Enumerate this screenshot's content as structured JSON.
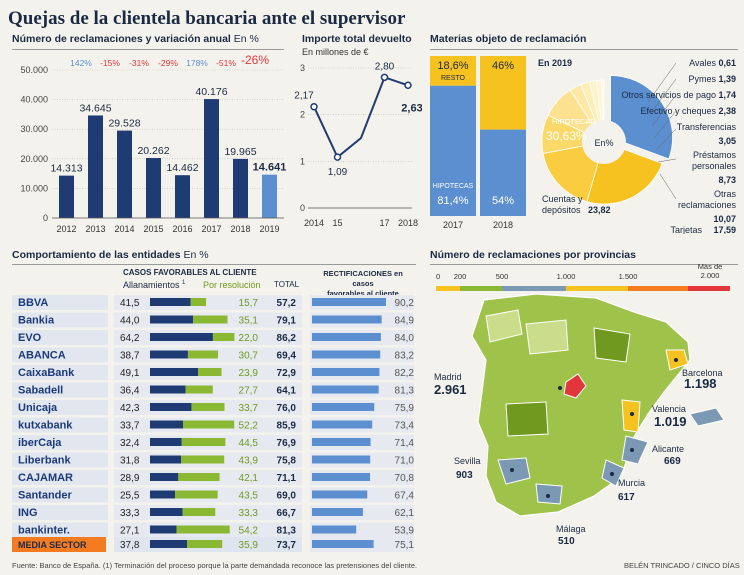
{
  "title": "Quejas de la clientela bancaria ante el supervisor",
  "panels": {
    "reclamaciones": {
      "heading": "Número de reclamaciones y variación anual",
      "unit": "En %"
    },
    "importe": {
      "heading": "Importe total devuelto",
      "unit": "En millones de €"
    },
    "materias": {
      "heading": "Materias objeto de reclamación",
      "year_label": "En 2019"
    },
    "comportamiento": {
      "heading": "Comportamiento de las entidades",
      "unit": "En %",
      "casos_header": "CASOS FAVORABLES AL CLIENTE",
      "allanamientos_header": "Allanamientos",
      "allanamientos_sup": "1",
      "resolucion_header": "Por resolución",
      "total_header": "TOTAL",
      "rect_header_line1": "RECTIFICACIONES en casos",
      "rect_header_line2": "favorables al cliente"
    },
    "provincias": {
      "heading": "Número de reclamaciones por provincias"
    }
  },
  "colors": {
    "navy": "#1f3b73",
    "blue": "#5b8fd0",
    "yellow": "#f6c21f",
    "green": "#8ab832",
    "red": "#e2363b",
    "orange": "#f47b20",
    "teal": "#7b98b5"
  },
  "chart_data": [
    {
      "type": "bar",
      "title": "Número de reclamaciones y variación anual",
      "categories": [
        "2012",
        "2013",
        "2014",
        "2015",
        "2016",
        "2017",
        "2018",
        "2019"
      ],
      "values": [
        14313,
        34645,
        29528,
        20262,
        14462,
        40176,
        19965,
        14641
      ],
      "value_labels": [
        "14.313",
        "34.645",
        "29.528",
        "20.262",
        "14.462",
        "40.176",
        "19.965",
        "14.641"
      ],
      "variation_labels": [
        "",
        "142%",
        "-15%",
        "-31%",
        "-29%",
        "178%",
        "-51%",
        "-26%"
      ],
      "ylim": [
        0,
        50000
      ],
      "y_ticks": [
        0,
        10000,
        20000,
        30000,
        40000,
        50000
      ],
      "y_tick_labels": [
        "0",
        "10.000",
        "20.000",
        "30.000",
        "40.000",
        "50.000"
      ]
    },
    {
      "type": "line",
      "title": "Importe total devuelto",
      "x": [
        2014,
        2015,
        2016,
        2017,
        2018
      ],
      "x_tick_labels": [
        "2014",
        "15",
        "",
        "17",
        "2018"
      ],
      "values": [
        2.17,
        1.09,
        1.5,
        2.8,
        2.63
      ],
      "value_labels": [
        "2,17",
        "1,09",
        "",
        "2,80",
        "2,63"
      ],
      "ylim": [
        0,
        3
      ],
      "y_ticks": [
        0,
        1,
        2,
        3
      ],
      "y_tick_labels": [
        "0",
        "1",
        "2",
        "3"
      ]
    },
    {
      "type": "bar",
      "subtype": "stacked-100",
      "title": "Materias objeto de reclamación",
      "categories": [
        "2017",
        "2018"
      ],
      "series": [
        {
          "name": "HIPOTECAS",
          "values": [
            81.4,
            54
          ],
          "labels": [
            "81,4%",
            "54%"
          ]
        },
        {
          "name": "RESTO",
          "values": [
            18.6,
            46
          ],
          "labels": [
            "18,6%",
            "46%"
          ]
        }
      ]
    },
    {
      "type": "pie",
      "title": "En 2019",
      "center_label": "En%",
      "slices": [
        {
          "name": "HIPOTECAS",
          "value": 30.63,
          "label": "30,63%"
        },
        {
          "name": "Cuentas y depósitos",
          "value": 23.82,
          "label": "23,82"
        },
        {
          "name": "Tarjetas",
          "value": 17.59,
          "label": "17,59"
        },
        {
          "name": "Otras reclamaciones",
          "value": 10.07,
          "label": "10,07"
        },
        {
          "name": "Préstamos personales",
          "value": 8.73,
          "label": "8,73"
        },
        {
          "name": "Transferencias",
          "value": 3.05,
          "label": "3,05"
        },
        {
          "name": "Efectivo y cheques",
          "value": 2.38,
          "label": "2,38"
        },
        {
          "name": "Otros servicios de pago",
          "value": 1.74,
          "label": "1,74"
        },
        {
          "name": "Pymes",
          "value": 1.39,
          "label": "1,39"
        },
        {
          "name": "Avales",
          "value": 0.61,
          "label": "0,61"
        }
      ]
    },
    {
      "type": "table",
      "title": "Comportamiento de las entidades",
      "rows": [
        {
          "bank": "BBVA",
          "allanamientos": 41.5,
          "resolucion": 15.7,
          "total": 57.2,
          "rectificaciones": 90.2,
          "a": "41,5",
          "r": "15,7",
          "t": "57,2",
          "rect": "90,2"
        },
        {
          "bank": "Bankia",
          "allanamientos": 44.0,
          "resolucion": 35.1,
          "total": 79.1,
          "rectificaciones": 84.9,
          "a": "44,0",
          "r": "35,1",
          "t": "79,1",
          "rect": "84,9"
        },
        {
          "bank": "EVO",
          "allanamientos": 64.2,
          "resolucion": 22.0,
          "total": 86.2,
          "rectificaciones": 84.0,
          "a": "64,2",
          "r": "22,0",
          "t": "86,2",
          "rect": "84,0"
        },
        {
          "bank": "ABANCA",
          "allanamientos": 38.7,
          "resolucion": 30.7,
          "total": 69.4,
          "rectificaciones": 83.2,
          "a": "38,7",
          "r": "30,7",
          "t": "69,4",
          "rect": "83,2"
        },
        {
          "bank": "CaixaBank",
          "allanamientos": 49.1,
          "resolucion": 23.9,
          "total": 72.9,
          "rectificaciones": 82.2,
          "a": "49,1",
          "r": "23,9",
          "t": "72,9",
          "rect": "82,2"
        },
        {
          "bank": "Sabadell",
          "allanamientos": 36.4,
          "resolucion": 27.7,
          "total": 64.1,
          "rectificaciones": 81.3,
          "a": "36,4",
          "r": "27,7",
          "t": "64,1",
          "rect": "81,3"
        },
        {
          "bank": "Unicaja",
          "allanamientos": 42.3,
          "resolucion": 33.7,
          "total": 76.0,
          "rectificaciones": 75.9,
          "a": "42,3",
          "r": "33,7",
          "t": "76,0",
          "rect": "75,9"
        },
        {
          "bank": "kutxabank",
          "allanamientos": 33.7,
          "resolucion": 52.2,
          "total": 85.9,
          "rectificaciones": 73.4,
          "a": "33,7",
          "r": "52,2",
          "t": "85,9",
          "rect": "73,4"
        },
        {
          "bank": "iberCaja",
          "allanamientos": 32.4,
          "resolucion": 44.5,
          "total": 76.9,
          "rectificaciones": 71.4,
          "a": "32,4",
          "r": "44,5",
          "t": "76,9",
          "rect": "71,4"
        },
        {
          "bank": "Liberbank",
          "allanamientos": 31.8,
          "resolucion": 43.9,
          "total": 75.8,
          "rectificaciones": 71.0,
          "a": "31,8",
          "r": "43,9",
          "t": "75,8",
          "rect": "71,0"
        },
        {
          "bank": "CAJAMAR",
          "allanamientos": 28.9,
          "resolucion": 42.1,
          "total": 71.1,
          "rectificaciones": 70.8,
          "a": "28,9",
          "r": "42,1",
          "t": "71,1",
          "rect": "70,8"
        },
        {
          "bank": "Santander",
          "allanamientos": 25.5,
          "resolucion": 43.5,
          "total": 69.0,
          "rectificaciones": 67.4,
          "a": "25,5",
          "r": "43,5",
          "t": "69,0",
          "rect": "67,4"
        },
        {
          "bank": "ING",
          "allanamientos": 33.3,
          "resolucion": 33.3,
          "total": 66.7,
          "rectificaciones": 62.1,
          "a": "33,3",
          "r": "33,3",
          "t": "66,7",
          "rect": "62,1"
        },
        {
          "bank": "bankinter.",
          "allanamientos": 27.1,
          "resolucion": 54.2,
          "total": 81.3,
          "rectificaciones": 53.9,
          "a": "27,1",
          "r": "54,2",
          "t": "81,3",
          "rect": "53,9"
        }
      ],
      "media": {
        "bank": "MEDIA SECTOR",
        "allanamientos": 37.8,
        "resolucion": 35.9,
        "total": 73.7,
        "rectificaciones": 75.1,
        "a": "37,8",
        "r": "35,9",
        "t": "73,7",
        "rect": "75,1"
      }
    },
    {
      "type": "heatmap",
      "title": "Número de reclamaciones por provincias",
      "legend_ticks": [
        "0",
        "200",
        "500",
        "1.000",
        "1.500",
        "Más de 2.000"
      ],
      "highlighted": [
        {
          "province": "Madrid",
          "value": "2.961"
        },
        {
          "province": "Barcelona",
          "value": "1.198"
        },
        {
          "province": "Valencia",
          "value": "1.019"
        },
        {
          "province": "Alicante",
          "value": "669"
        },
        {
          "province": "Sevilla",
          "value": "903"
        },
        {
          "province": "Murcia",
          "value": "617"
        },
        {
          "province": "Málaga",
          "value": "510"
        }
      ]
    }
  ],
  "footnote": "Fuente: Banco de España. (1) Terminación del proceso porque la parte demandada reconoce las pretensiones del cliente.",
  "credit": "BELÉN TRINCADO / CINCO DÍAS"
}
